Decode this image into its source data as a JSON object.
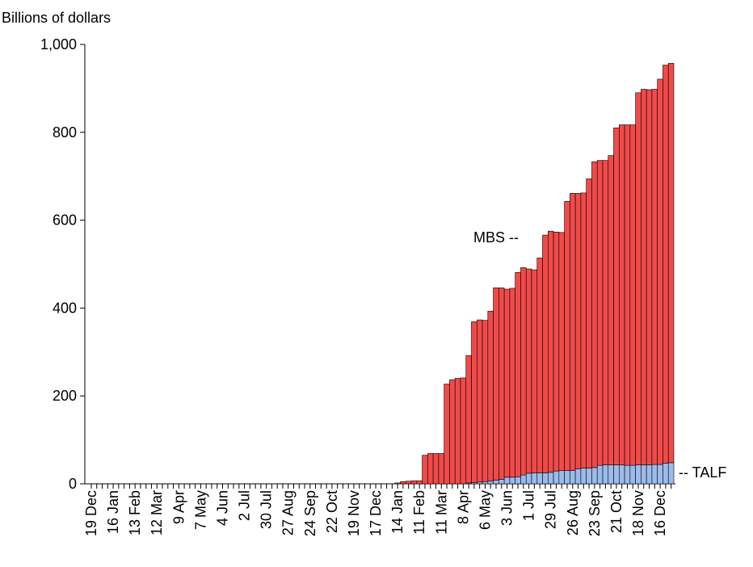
{
  "chart_data": {
    "type": "stacked_bar",
    "y_label": "Billions of dollars",
    "categories": [
      "19 Dec",
      null,
      null,
      null,
      "16 Jan",
      null,
      null,
      null,
      "13 Feb",
      null,
      null,
      null,
      "12 Mar",
      null,
      null,
      null,
      "9 Apr",
      null,
      null,
      null,
      "7 May",
      null,
      null,
      null,
      "4 Jun",
      null,
      null,
      null,
      "2 Jul",
      null,
      null,
      null,
      "30 Jul",
      null,
      null,
      null,
      "27 Aug",
      null,
      null,
      null,
      "24 Sep",
      null,
      null,
      null,
      "22 Oct",
      null,
      null,
      null,
      "19 Nov",
      null,
      null,
      null,
      "17 Dec",
      null,
      null,
      null,
      "14 Jan",
      null,
      null,
      null,
      "11 Feb",
      null,
      null,
      null,
      "11 Mar",
      null,
      null,
      null,
      "8 Apr",
      null,
      null,
      null,
      "6 May",
      null,
      null,
      null,
      "3 Jun",
      null,
      null,
      null,
      "1 Jul",
      null,
      null,
      null,
      "29 Jul",
      null,
      null,
      null,
      "26 Aug",
      null,
      null,
      null,
      "23 Sep",
      null,
      null,
      null,
      "21 Oct",
      null,
      null,
      null,
      "18 Nov",
      null,
      null,
      null,
      "16 Dec",
      null,
      null
    ],
    "series": [
      {
        "name": "TALF",
        "color": "#9dbbea",
        "values": [
          0,
          0,
          0,
          0,
          0,
          0,
          0,
          0,
          0,
          0,
          0,
          0,
          0,
          0,
          0,
          0,
          0,
          0,
          0,
          0,
          0,
          0,
          0,
          0,
          0,
          0,
          0,
          0,
          0,
          0,
          0,
          0,
          0,
          0,
          0,
          0,
          0,
          0,
          0,
          0,
          0,
          0,
          0,
          0,
          0,
          0,
          0,
          0,
          0,
          0,
          0,
          0,
          0,
          0,
          0,
          0,
          0,
          0,
          0,
          0,
          0,
          0,
          0,
          0,
          0,
          0,
          0,
          0,
          0,
          2,
          3,
          4,
          5,
          6,
          8,
          10,
          15,
          15,
          16,
          20,
          24,
          25,
          25,
          25,
          26,
          29,
          30,
          30,
          30,
          34,
          36,
          36,
          37,
          42,
          43,
          43,
          43,
          43,
          42,
          42,
          43,
          43,
          43,
          44,
          44,
          47,
          48
        ]
      },
      {
        "name": "MBS",
        "color": "#f04a4a",
        "values": [
          0,
          0,
          0,
          0,
          0,
          0,
          0,
          0,
          0,
          0,
          0,
          0,
          0,
          0,
          0,
          0,
          0,
          0,
          0,
          0,
          0,
          0,
          0,
          0,
          0,
          0,
          0,
          0,
          0,
          0,
          0,
          0,
          0,
          0,
          0,
          0,
          0,
          0,
          0,
          0,
          0,
          0,
          0,
          0,
          0,
          0,
          0,
          0,
          0,
          0,
          0,
          0,
          0,
          0,
          0,
          0,
          2,
          5,
          6,
          7,
          7,
          65,
          69,
          69,
          69,
          227,
          237,
          240,
          241,
          290,
          366,
          369,
          367,
          387,
          438,
          436,
          428,
          430,
          465,
          472,
          465,
          462,
          489,
          541,
          549,
          544,
          542,
          613,
          631,
          627,
          626,
          658,
          696,
          694,
          693,
          704,
          767,
          774,
          775,
          775,
          847,
          855,
          854,
          854,
          877,
          906,
          909
        ]
      }
    ],
    "annotations": [
      "MBS --",
      "-- TALF"
    ],
    "ylim": [
      0,
      1000
    ],
    "yticks": [
      0,
      200,
      400,
      600,
      800,
      {
        "value": 1000,
        "label": "1,000"
      }
    ]
  }
}
